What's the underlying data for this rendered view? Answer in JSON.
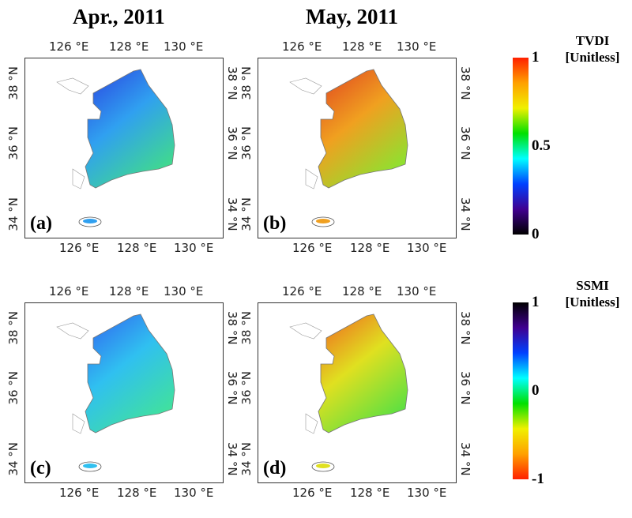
{
  "columns": [
    "Apr., 2011",
    "May, 2011"
  ],
  "lon_ticks": [
    "126 °E",
    "128 °E",
    "130 °E"
  ],
  "lat_ticks": [
    "38 °N",
    "36 °N",
    "34 °N"
  ],
  "panels": [
    {
      "label": "(a)",
      "variable": "TVDI",
      "month": "Apr., 2011",
      "dominant_colors": [
        "#2a40e0",
        "#30a0f0",
        "#40d890"
      ]
    },
    {
      "label": "(b)",
      "variable": "TVDI",
      "month": "May, 2011",
      "dominant_colors": [
        "#e04020",
        "#f0a020",
        "#90e030"
      ]
    },
    {
      "label": "(c)",
      "variable": "SSMI",
      "month": "Apr., 2011",
      "dominant_colors": [
        "#3060f0",
        "#30c0f0",
        "#40e0a0"
      ]
    },
    {
      "label": "(d)",
      "variable": "SSMI",
      "month": "May, 2011",
      "dominant_colors": [
        "#f06020",
        "#e0e020",
        "#60e040"
      ]
    }
  ],
  "colorbars": [
    {
      "title": "TVDI",
      "unit": "[Unitless]",
      "ticks": [
        "1",
        "0.5",
        "0"
      ],
      "range": [
        0,
        1
      ],
      "colors": [
        "#ff2000",
        "#ffa000",
        "#f0f000",
        "#00e000",
        "#00ffff",
        "#0040ff",
        "#400090",
        "#000000"
      ]
    },
    {
      "title": "SSMI",
      "unit": "[Unitless]",
      "ticks": [
        "1",
        "0",
        "-1"
      ],
      "range": [
        -1,
        1
      ],
      "colors": [
        "#000000",
        "#400090",
        "#0040ff",
        "#00ffff",
        "#00e000",
        "#f0f000",
        "#ffa000",
        "#ff2000"
      ]
    }
  ]
}
